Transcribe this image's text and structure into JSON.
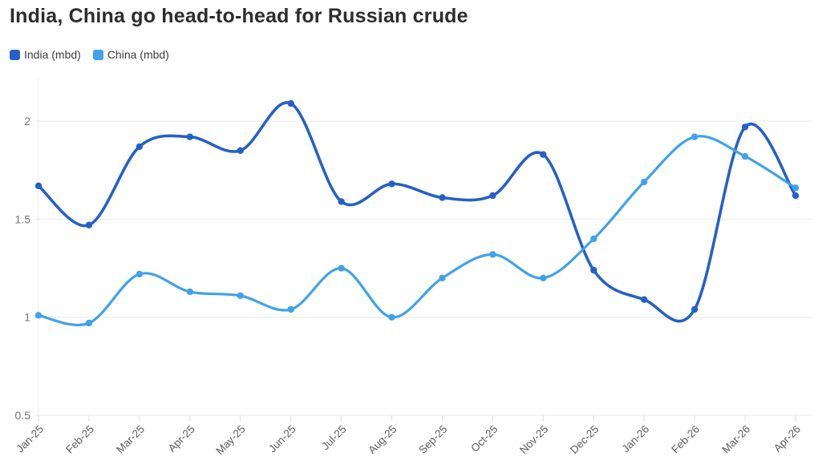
{
  "title": "India, China go head-to-head for Russian crude",
  "legend": {
    "items": [
      {
        "label": "India (mbd)",
        "color": "#2560c7"
      },
      {
        "label": "China (mbd)",
        "color": "#3fa2eb"
      }
    ]
  },
  "colors": {
    "title": "#2d2d2d",
    "y_tick_label": "#757575",
    "x_tick_label": "#5c5c5c",
    "gridline": "#e9e9e9",
    "axis_tick": "#dedede",
    "background": "#ffffff"
  },
  "chart_data": {
    "type": "line",
    "title": "India, China go head-to-head for Russian crude",
    "xlabel": "",
    "ylabel": "",
    "categories": [
      "Jan-25",
      "Feb-25",
      "Mar-25",
      "Apr-25",
      "May-25",
      "Jun-25",
      "Jul-25",
      "Aug-25",
      "Sep-25",
      "Oct-25",
      "Nov-25",
      "Dec-25",
      "Jan-26",
      "Feb-26",
      "Mar-26",
      "Apr-26"
    ],
    "series": [
      {
        "name": "India (mbd)",
        "color": "#2560c7",
        "values": [
          1.67,
          1.47,
          1.87,
          1.92,
          1.85,
          2.09,
          1.59,
          1.68,
          1.61,
          1.62,
          1.83,
          1.24,
          1.09,
          1.04,
          1.97,
          1.62
        ]
      },
      {
        "name": "China (mbd)",
        "color": "#3fa2eb",
        "values": [
          1.01,
          0.97,
          1.22,
          1.13,
          1.11,
          1.04,
          1.25,
          1.0,
          1.2,
          1.32,
          1.2,
          1.4,
          1.69,
          1.92,
          1.82,
          1.66
        ]
      }
    ],
    "y_ticks": [
      0.5,
      1,
      1.5,
      2
    ],
    "ylim": [
      0.5,
      2.2
    ],
    "grid": "horizontal",
    "legend_position": "top-left",
    "line_style": "smooth",
    "markers": true
  }
}
